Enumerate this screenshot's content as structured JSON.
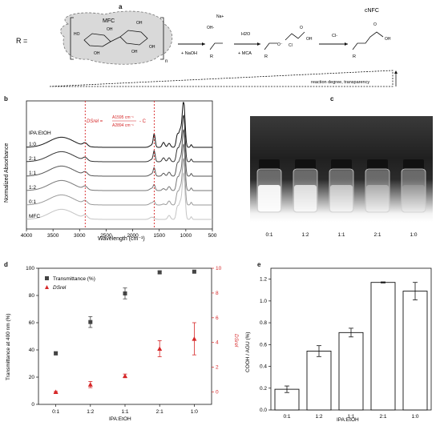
{
  "panels": {
    "a": {
      "label": "a",
      "R_label": "R =",
      "mfc_label": "MFC",
      "n_label": "n",
      "na_label": "Na+",
      "oh_label": "OH-",
      "naoh_label": "+ NaOH",
      "h2o_label": "H2O",
      "mca_label": "+ MCA",
      "cl_label": "Cl-",
      "cnfc_label": "cNFC",
      "r_sub": "R",
      "bottom_note": "reaction degree, transparency"
    },
    "b": {
      "label": "b",
      "ylabel": "Normalized Absorbance",
      "xlabel": "Wavelength (cm⁻¹)",
      "legend_title": "IPA:EtOH",
      "formula_left": "DSrel =",
      "formula_num": "A1595 cm⁻¹",
      "formula_den": "A2894 cm⁻¹",
      "formula_right": "- C",
      "accent_color": "#d62728"
    },
    "c": {
      "label": "c",
      "vial_labels": [
        "0:1",
        "1:2",
        "1:1",
        "2:1",
        "1:0"
      ]
    },
    "d": {
      "label": "d",
      "legend_transmittance": "Transmittance (%)",
      "legend_ds": "DSrel",
      "ylabel_left": "Transmittance at 400 nm (%)",
      "ylabel_right": "DSrel",
      "xlabel": "IPA:EtOH",
      "left_color": "#444444",
      "right_color": "#d62728"
    },
    "e": {
      "label": "e",
      "ylabel": "COOH / AGU (%)",
      "xlabel": "IPA:EtOH"
    }
  },
  "chart_data": [
    {
      "panel": "b",
      "type": "line",
      "title": "",
      "xlabel": "Wavelength (cm⁻¹)",
      "ylabel": "Normalized Absorbance",
      "xlim": [
        4000,
        500
      ],
      "x_ticks": [
        4000,
        3500,
        3000,
        2500,
        2000,
        1500,
        1000,
        500
      ],
      "series_labels": [
        "1:0",
        "2:1",
        "1:1",
        "1:2",
        "0:1",
        "MFC"
      ],
      "series_colors": [
        "#111111",
        "#333333",
        "#555555",
        "#777777",
        "#9a9a9a",
        "#c4c4c4"
      ],
      "reference_lines_x": [
        2894,
        1595
      ],
      "grid": false
    },
    {
      "panel": "d",
      "type": "scatter",
      "categories": [
        "0:1",
        "1:2",
        "1:1",
        "2:1",
        "1:0"
      ],
      "xlabel": "IPA:EtOH",
      "series": [
        {
          "name": "Transmittance (%)",
          "axis": "left",
          "values": [
            37.5,
            60.5,
            81.5,
            97.0,
            97.5
          ],
          "errors": [
            1.2,
            4.0,
            4.0,
            1.0,
            0.5
          ],
          "marker": "square",
          "color": "#444444"
        },
        {
          "name": "DSrel",
          "axis": "right",
          "values": [
            0.0,
            0.6,
            1.3,
            3.5,
            4.3
          ],
          "errors": [
            0.05,
            0.25,
            0.15,
            0.65,
            1.3
          ],
          "marker": "triangle",
          "color": "#d62728"
        }
      ],
      "ylim_left": [
        0,
        100
      ],
      "yticks_left": [
        0,
        20,
        40,
        60,
        80,
        100
      ],
      "ylim_right": [
        -1,
        10
      ],
      "yticks_right": [
        0,
        2,
        4,
        6,
        8,
        10
      ],
      "legend": "top-left"
    },
    {
      "panel": "e",
      "type": "bar",
      "categories": [
        "0:1",
        "1:2",
        "1:1",
        "2:1",
        "1:0"
      ],
      "values": [
        0.19,
        0.54,
        0.71,
        1.17,
        1.09
      ],
      "errors": [
        0.03,
        0.05,
        0.04,
        0.005,
        0.08
      ],
      "xlabel": "IPA:EtOH",
      "ylabel": "COOH / AGU (%)",
      "ylim": [
        0,
        1.3
      ],
      "yticks": [
        0.0,
        0.2,
        0.4,
        0.6,
        0.8,
        1.0,
        1.2
      ]
    }
  ]
}
